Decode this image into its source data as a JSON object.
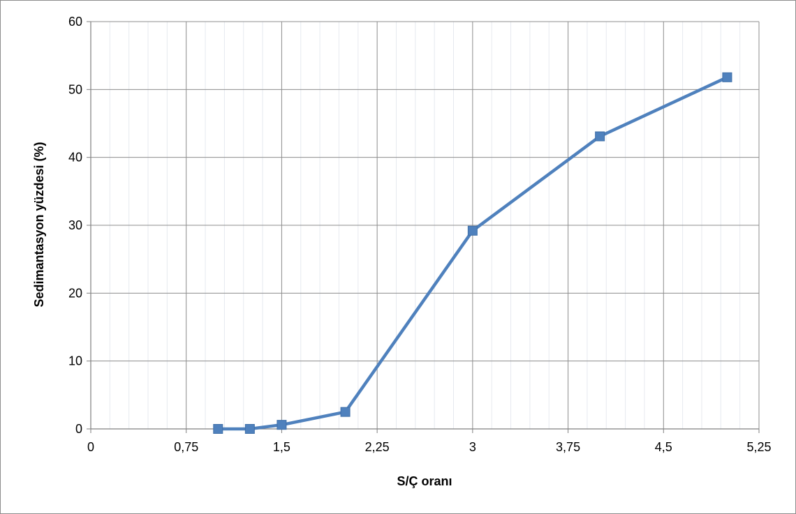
{
  "chart_data": {
    "type": "line",
    "title": "",
    "xlabel": "S/Ç oranı",
    "ylabel": "Sedimantasyon yüzdesi (%)",
    "xlim": [
      0,
      5.25
    ],
    "ylim": [
      0,
      60
    ],
    "x_ticks": [
      0,
      0.75,
      1.5,
      2.25,
      3,
      3.75,
      4.5,
      5.25
    ],
    "x_tick_labels": [
      "0",
      "0,75",
      "1,5",
      "2,25",
      "3",
      "3,75",
      "4,5",
      "5,25"
    ],
    "y_ticks": [
      0,
      10,
      20,
      30,
      40,
      50,
      60
    ],
    "y_tick_labels": [
      "0",
      "10",
      "20",
      "30",
      "40",
      "50",
      "60"
    ],
    "grid": true,
    "legend": "none",
    "series": [
      {
        "color": "#4F81BD",
        "marker": "square",
        "x": [
          1,
          1.25,
          1.5,
          2,
          3,
          4,
          5
        ],
        "y": [
          0,
          0,
          0.6,
          2.5,
          29.2,
          43.1,
          51.8
        ]
      }
    ]
  }
}
